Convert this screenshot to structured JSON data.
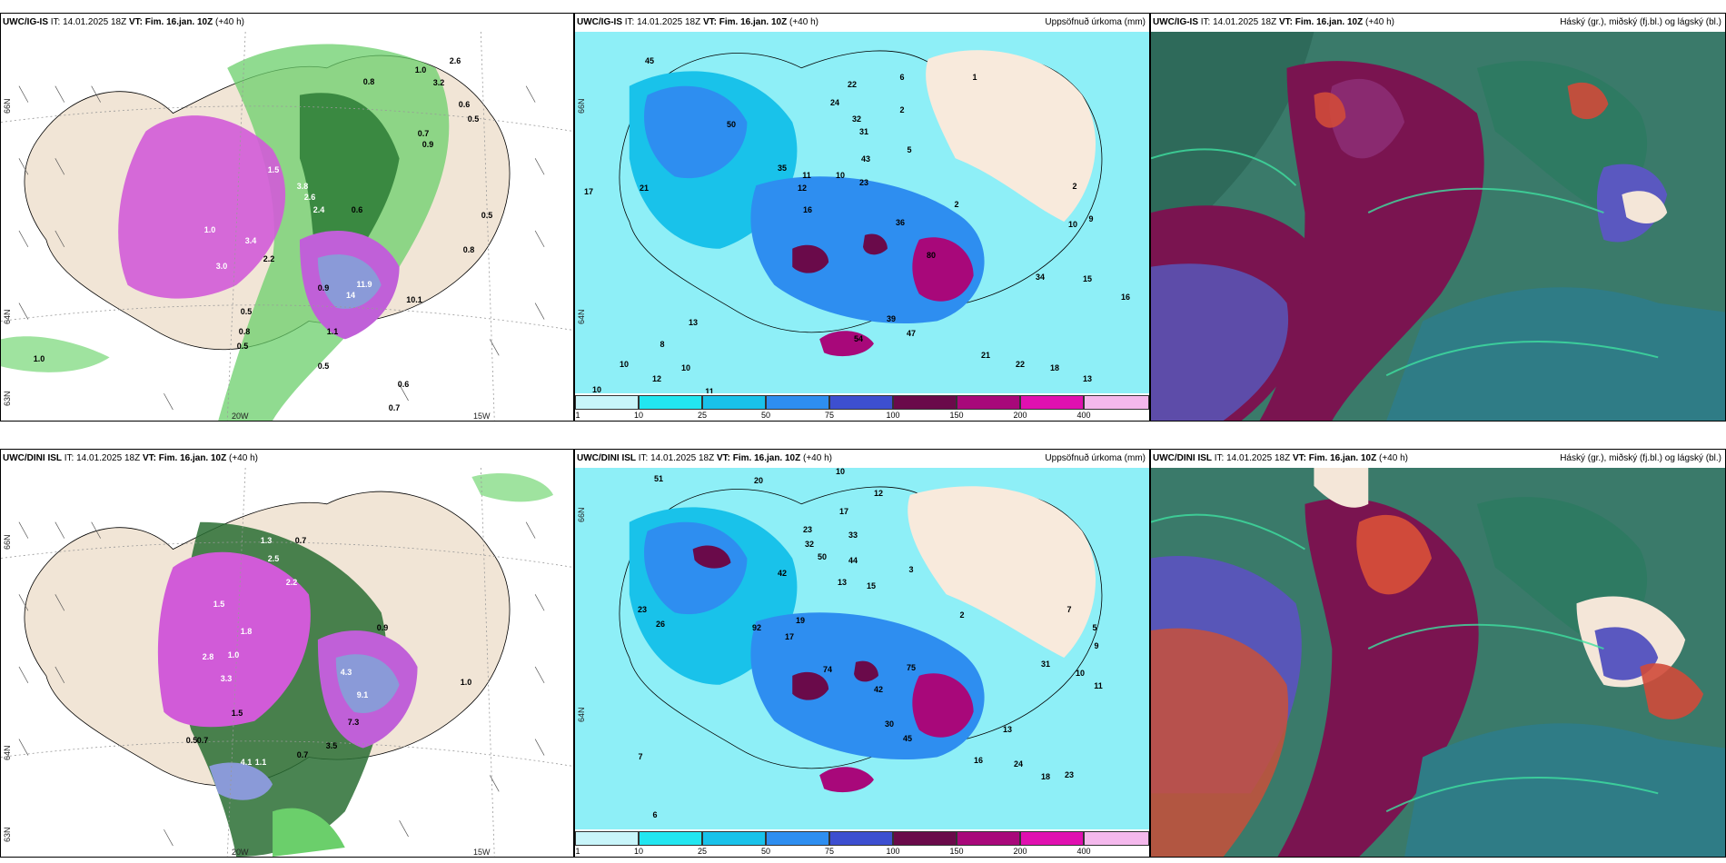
{
  "panels": {
    "p1": {
      "model": "UWC/IG-IS",
      "it": "IT: 14.01.2025 18Z",
      "vt": "VT: Fim. 16.jan. 10Z",
      "lead": "(+40 h)",
      "right": "",
      "ticks": {
        "xa": "20W",
        "xb": "15W",
        "ya": "66N",
        "yb": "64N",
        "yc": "63N"
      },
      "numbers": [
        "0.8",
        "1.0",
        "2.6",
        "3.2",
        "0.6",
        "0.5",
        "0.7",
        "0.9",
        "3.8",
        "2.6",
        "2.4",
        "1.5",
        "0.6",
        "0.5",
        "0.8",
        "3.4",
        "1.0",
        "3.0",
        "2.2",
        "0.9",
        "11.9",
        "14",
        "10.1",
        "1.1",
        "0.5",
        "0.8",
        "0.5",
        "1.0",
        "0.7",
        "0.6",
        "0.5"
      ]
    },
    "p2": {
      "model": "UWC/IG-IS",
      "it": "IT: 14.01.2025 18Z",
      "vt": "VT: Fim. 16.jan. 10Z",
      "lead": "(+40 h)",
      "right": "Uppsöfnuð úrkoma (mm)",
      "ticks": {
        "ya": "66N",
        "yb": "64N"
      },
      "numbers": [
        "45",
        "50",
        "24",
        "22",
        "32",
        "31",
        "43",
        "35",
        "11",
        "10",
        "23",
        "17",
        "21",
        "12",
        "16",
        "2",
        "1",
        "2",
        "36",
        "80",
        "39",
        "47",
        "54",
        "13",
        "8",
        "10",
        "12",
        "10",
        "11",
        "21",
        "22",
        "18",
        "13",
        "10",
        "15",
        "16",
        "34",
        "10",
        "9",
        "6",
        "5",
        "2"
      ]
    },
    "p3": {
      "model": "UWC/IG-IS",
      "it": "IT: 14.01.2025 18Z",
      "vt": "VT: Fim. 16.jan. 10Z",
      "lead": "(+40 h)",
      "right": "Háský (gr.), miðský (fj.bl.) og lágský (bl.)"
    },
    "p4": {
      "model": "UWC/DINI ISL",
      "it": "IT: 14.01.2025 18Z",
      "vt": "VT: Fim. 16.jan. 10Z",
      "lead": "(+40 h)",
      "right": "",
      "ticks": {
        "xa": "20W",
        "xb": "15W",
        "ya": "66N",
        "yb": "64N",
        "yc": "63N"
      },
      "numbers": [
        "0.7",
        "1.5",
        "2.5",
        "2.2",
        "1.8",
        "0.9",
        "2.8",
        "3.3",
        "1.0",
        "4.3",
        "9.1",
        "7.3",
        "1.5",
        "4.1",
        "1.1",
        "0.7",
        "3.5",
        "0.7",
        "0.5",
        "1.0",
        "1.3"
      ]
    },
    "p5": {
      "model": "UWC/DINI ISL",
      "it": "IT: 14.01.2025 18Z",
      "vt": "VT: Fim. 16.jan. 10Z",
      "lead": "(+40 h)",
      "right": "Uppsöfnuð úrkoma (mm)",
      "ticks": {
        "ya": "66N",
        "yb": "64N"
      },
      "numbers": [
        "51",
        "20",
        "10",
        "12",
        "23",
        "32",
        "33",
        "17",
        "50",
        "44",
        "42",
        "13",
        "15",
        "3",
        "23",
        "26",
        "19",
        "17",
        "2",
        "92",
        "74",
        "42",
        "75",
        "30",
        "45",
        "16",
        "13",
        "24",
        "18",
        "23",
        "7",
        "7",
        "6",
        "5",
        "10",
        "11",
        "31",
        "9"
      ]
    },
    "p6": {
      "model": "UWC/DINI ISL",
      "it": "IT: 14.01.2025 18Z",
      "vt": "VT: Fim. 16.jan. 10Z",
      "lead": "(+40 h)",
      "right": "Háský (gr.), miðský (fj.bl.) og lágský (bl.)"
    }
  },
  "colorbar": {
    "ticks": [
      "1",
      "10",
      "25",
      "50",
      "75",
      "100",
      "150",
      "200",
      "400"
    ],
    "colors": [
      "#c8f5fa",
      "#22e6f0",
      "#19c2ea",
      "#2e8ef0",
      "#3d4fd0",
      "#6a0a4a",
      "#a8087a",
      "#e010b0",
      "#f4b8ec"
    ]
  }
}
